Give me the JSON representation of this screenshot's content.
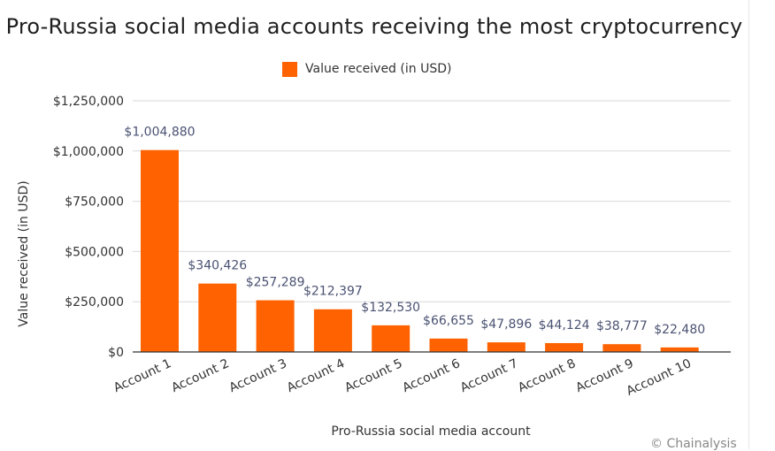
{
  "chart_data": {
    "type": "bar",
    "title": "Pro-Russia social media accounts receiving the most cryptocurrency",
    "xlabel": "Pro-Russia social media account",
    "ylabel": "Value received (in USD)",
    "categories": [
      "Account 1",
      "Account 2",
      "Account 3",
      "Account 4",
      "Account 5",
      "Account 6",
      "Account 7",
      "Account 8",
      "Account 9",
      "Account 10"
    ],
    "series": [
      {
        "name": "Value received (in USD)",
        "values": [
          1004880,
          340426,
          257289,
          212397,
          132530,
          66655,
          47896,
          44124,
          38777,
          22480
        ],
        "labels": [
          "$1,004,880",
          "$340,426",
          "$257,289",
          "$212,397",
          "$132,530",
          "$66,655",
          "$47,896",
          "$44,124",
          "$38,777",
          "$22,480"
        ],
        "color": "#ff6200"
      }
    ],
    "ylim": [
      0,
      1250000
    ],
    "yticks": [
      0,
      250000,
      500000,
      750000,
      1000000,
      1250000
    ],
    "ytick_labels": [
      "$0",
      "$250,000",
      "$500,000",
      "$750,000",
      "$1,000,000",
      "$1,250,000"
    ],
    "grid": true,
    "legend_position": "top"
  },
  "credit": "© Chainalysis"
}
